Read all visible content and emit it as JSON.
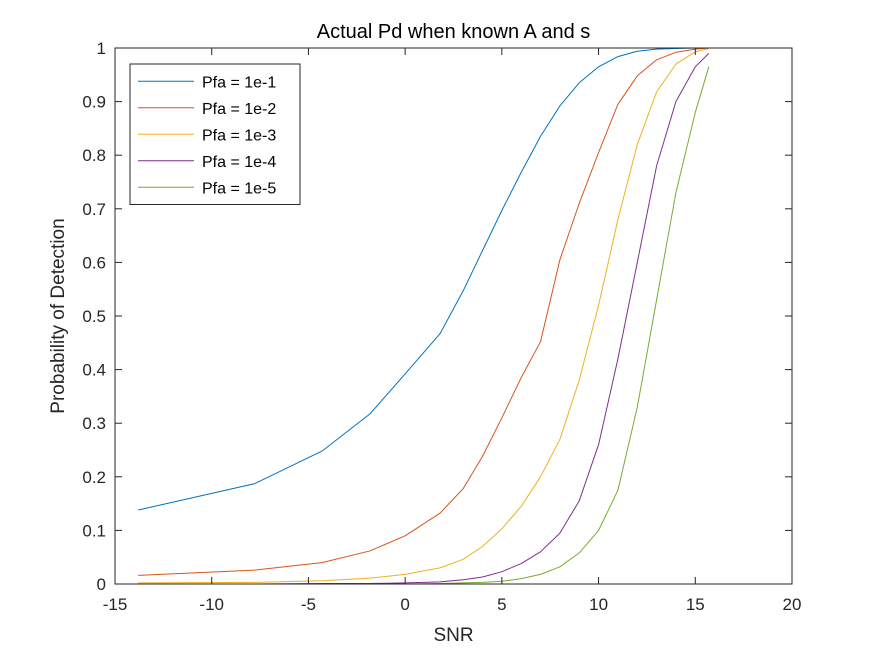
{
  "chart_data": {
    "type": "line",
    "title": "Actual Pd when known A and s",
    "xlabel": "SNR",
    "ylabel": "Probability of Detection",
    "xlim": [
      -15,
      20
    ],
    "ylim": [
      0,
      1
    ],
    "xticks": [
      -15,
      -10,
      -5,
      0,
      5,
      10,
      15,
      20
    ],
    "yticks": [
      0,
      0.1,
      0.2,
      0.3,
      0.4,
      0.5,
      0.6,
      0.7,
      0.8,
      0.9,
      1
    ],
    "xtick_labels": [
      "-15",
      "-10",
      "-5",
      "0",
      "5",
      "10",
      "15",
      "20"
    ],
    "ytick_labels": [
      "0",
      "0.1",
      "0.2",
      "0.3",
      "0.4",
      "0.5",
      "0.6",
      "0.7",
      "0.8",
      "0.9",
      "1"
    ],
    "legend_position": "top-left",
    "series": [
      {
        "name": "Pfa = 1e-1",
        "color": "#0072BD",
        "x": [
          -13.8,
          -7.8,
          -4.3,
          -1.8,
          0,
          1.8,
          3,
          4,
          5,
          6,
          7,
          8,
          9,
          10,
          11,
          12,
          13,
          14,
          15,
          15.7
        ],
        "y": [
          0.138,
          0.187,
          0.248,
          0.318,
          0.392,
          0.467,
          0.547,
          0.622,
          0.697,
          0.768,
          0.835,
          0.892,
          0.935,
          0.965,
          0.984,
          0.994,
          0.998,
          0.999,
          1.0,
          1.0
        ]
      },
      {
        "name": "Pfa = 1e-2",
        "color": "#D95319",
        "x": [
          -13.8,
          -7.8,
          -4.3,
          -1.8,
          0,
          1.8,
          3,
          4,
          5,
          6,
          7,
          8,
          9,
          10,
          11,
          12,
          13,
          14,
          15,
          15.7
        ],
        "y": [
          0.016,
          0.026,
          0.04,
          0.062,
          0.09,
          0.132,
          0.178,
          0.238,
          0.31,
          0.385,
          0.452,
          0.605,
          0.71,
          0.805,
          0.895,
          0.948,
          0.978,
          0.992,
          0.998,
          1.0
        ]
      },
      {
        "name": "Pfa = 1e-3",
        "color": "#EDB120",
        "x": [
          -13.8,
          -7.8,
          -4.3,
          -1.8,
          0,
          1.8,
          3,
          4,
          5,
          6,
          7,
          8,
          9,
          10,
          11,
          12,
          13,
          14,
          15,
          15.7
        ],
        "y": [
          0.002,
          0.003,
          0.006,
          0.011,
          0.018,
          0.03,
          0.046,
          0.07,
          0.103,
          0.145,
          0.2,
          0.27,
          0.38,
          0.52,
          0.68,
          0.82,
          0.918,
          0.97,
          0.993,
          0.999
        ]
      },
      {
        "name": "Pfa = 1e-4",
        "color": "#7E2F8E",
        "x": [
          -13.8,
          -7.8,
          -4.3,
          -1.8,
          0,
          1.8,
          3,
          4,
          5,
          6,
          7,
          8,
          9,
          10,
          11,
          12,
          13,
          14,
          15,
          15.7
        ],
        "y": [
          0.0,
          0.0,
          0.001,
          0.001,
          0.002,
          0.004,
          0.008,
          0.013,
          0.023,
          0.038,
          0.06,
          0.095,
          0.155,
          0.26,
          0.42,
          0.6,
          0.78,
          0.9,
          0.965,
          0.99
        ]
      },
      {
        "name": "Pfa = 1e-5",
        "color": "#77AC30",
        "x": [
          -13.8,
          -7.8,
          -4.3,
          -1.8,
          0,
          1.8,
          3,
          4,
          5,
          6,
          7,
          8,
          9,
          10,
          11,
          12,
          13,
          14,
          15,
          15.7
        ],
        "y": [
          0.0,
          0.0,
          0.0,
          0.0,
          0.0,
          0.001,
          0.002,
          0.003,
          0.005,
          0.01,
          0.018,
          0.032,
          0.058,
          0.1,
          0.175,
          0.33,
          0.53,
          0.73,
          0.88,
          0.965
        ]
      }
    ]
  }
}
